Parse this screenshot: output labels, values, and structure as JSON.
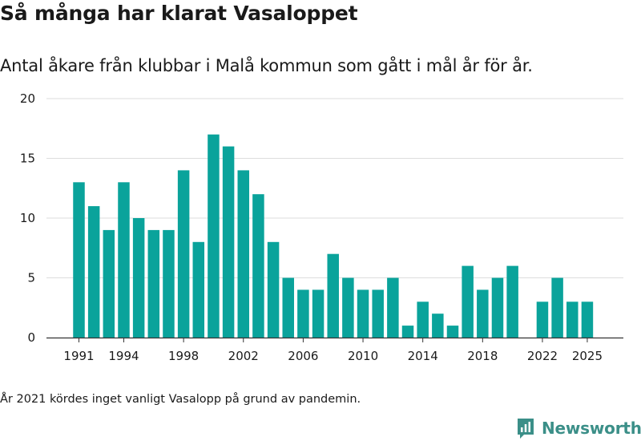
{
  "header": {
    "title": "Så många har klarat Vasaloppet",
    "subtitle": "Antal åkare från klubbar i Malå kommun som gått i mål år för år."
  },
  "footnote": "År 2021 kördes inget vanligt Vasalopp på grund av pandemin.",
  "brand": {
    "name": "Newsworthy",
    "icon": "newsworthy-logo-icon",
    "color": "#3b8f88"
  },
  "colors": {
    "bar": "#0aa39b",
    "grid": "#dddddd",
    "axis": "#333333"
  },
  "chart_data": {
    "type": "bar",
    "title": "Så många har klarat Vasaloppet",
    "subtitle": "Antal åkare från klubbar i Malå kommun som gått i mål år för år.",
    "xlabel": "",
    "ylabel": "",
    "ylim": [
      0,
      20
    ],
    "yticks": [
      0,
      5,
      10,
      15,
      20
    ],
    "xticks": [
      1991,
      1994,
      1998,
      2002,
      2006,
      2010,
      2014,
      2018,
      2022,
      2025
    ],
    "grid": true,
    "categories": [
      1991,
      1992,
      1993,
      1994,
      1995,
      1996,
      1997,
      1998,
      1999,
      2000,
      2001,
      2002,
      2003,
      2004,
      2005,
      2006,
      2007,
      2008,
      2009,
      2010,
      2011,
      2012,
      2013,
      2014,
      2015,
      2016,
      2017,
      2018,
      2019,
      2020,
      2021,
      2022,
      2023,
      2024,
      2025
    ],
    "values": [
      13,
      11,
      9,
      13,
      10,
      9,
      9,
      14,
      8,
      17,
      16,
      14,
      12,
      8,
      5,
      4,
      4,
      7,
      5,
      4,
      4,
      5,
      1,
      3,
      2,
      1,
      6,
      4,
      5,
      6,
      null,
      3,
      5,
      3,
      3
    ]
  }
}
